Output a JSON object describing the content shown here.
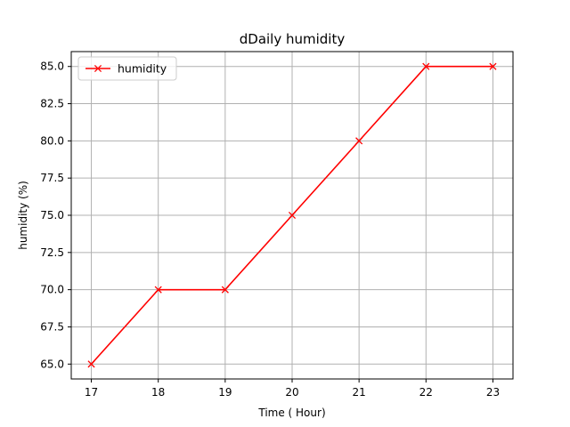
{
  "chart_data": {
    "type": "line",
    "title": "dDaily humidity",
    "xlabel": "Time ( Hour)",
    "ylabel": "humidity (%)",
    "x": [
      17,
      18,
      19,
      20,
      21,
      22,
      23
    ],
    "series": [
      {
        "name": "humidity",
        "values": [
          65,
          70,
          70,
          75,
          80,
          85,
          85
        ],
        "color": "#ff0000",
        "marker": "x"
      }
    ],
    "xticks": [
      "17",
      "18",
      "19",
      "20",
      "21",
      "22",
      "23"
    ],
    "yticks": [
      "65.0",
      "67.5",
      "70.0",
      "72.5",
      "75.0",
      "77.5",
      "80.0",
      "82.5",
      "85.0"
    ],
    "xlim": [
      16.7,
      23.3
    ],
    "ylim": [
      64.0,
      86.0
    ],
    "grid": true,
    "legend_position": "top-left"
  }
}
